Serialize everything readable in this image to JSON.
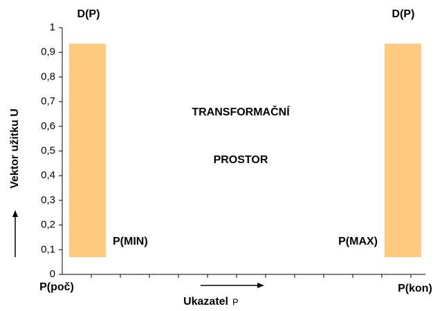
{
  "chart_data": {
    "type": "range",
    "color": "#fdca80",
    "lows": [
      0.07,
      0.07
    ],
    "highs": [
      0.935,
      0.935
    ],
    "top_labels": [
      "D(P)",
      "D(P)"
    ],
    "bound_labels": [
      "P(MIN)",
      "P(MAX)"
    ],
    "annotations": [
      "TRANSFORMAČNÍ",
      "PROSTOR"
    ],
    "ylabel": "Vektor užitku  U",
    "xlabel": "Ukazatel",
    "xlabel_symbol": "P",
    "x_end_labels": [
      "P(poč)",
      "P(kon)"
    ],
    "ylim": [
      0,
      1
    ],
    "yticks": [
      0,
      {
        "value": 0.1,
        "label": "0,1"
      },
      {
        "value": 0.2,
        "label": "0,2"
      },
      {
        "value": 0.3,
        "label": "0,3"
      },
      {
        "value": 0.4,
        "label": "0,4"
      },
      {
        "value": 0.5,
        "label": "0,5"
      },
      {
        "value": 0.6,
        "label": "0,6"
      },
      {
        "value": 0.7,
        "label": "0,7"
      },
      {
        "value": 0.8,
        "label": "0,8"
      },
      {
        "value": 0.9,
        "label": "0,9"
      },
      1
    ]
  }
}
